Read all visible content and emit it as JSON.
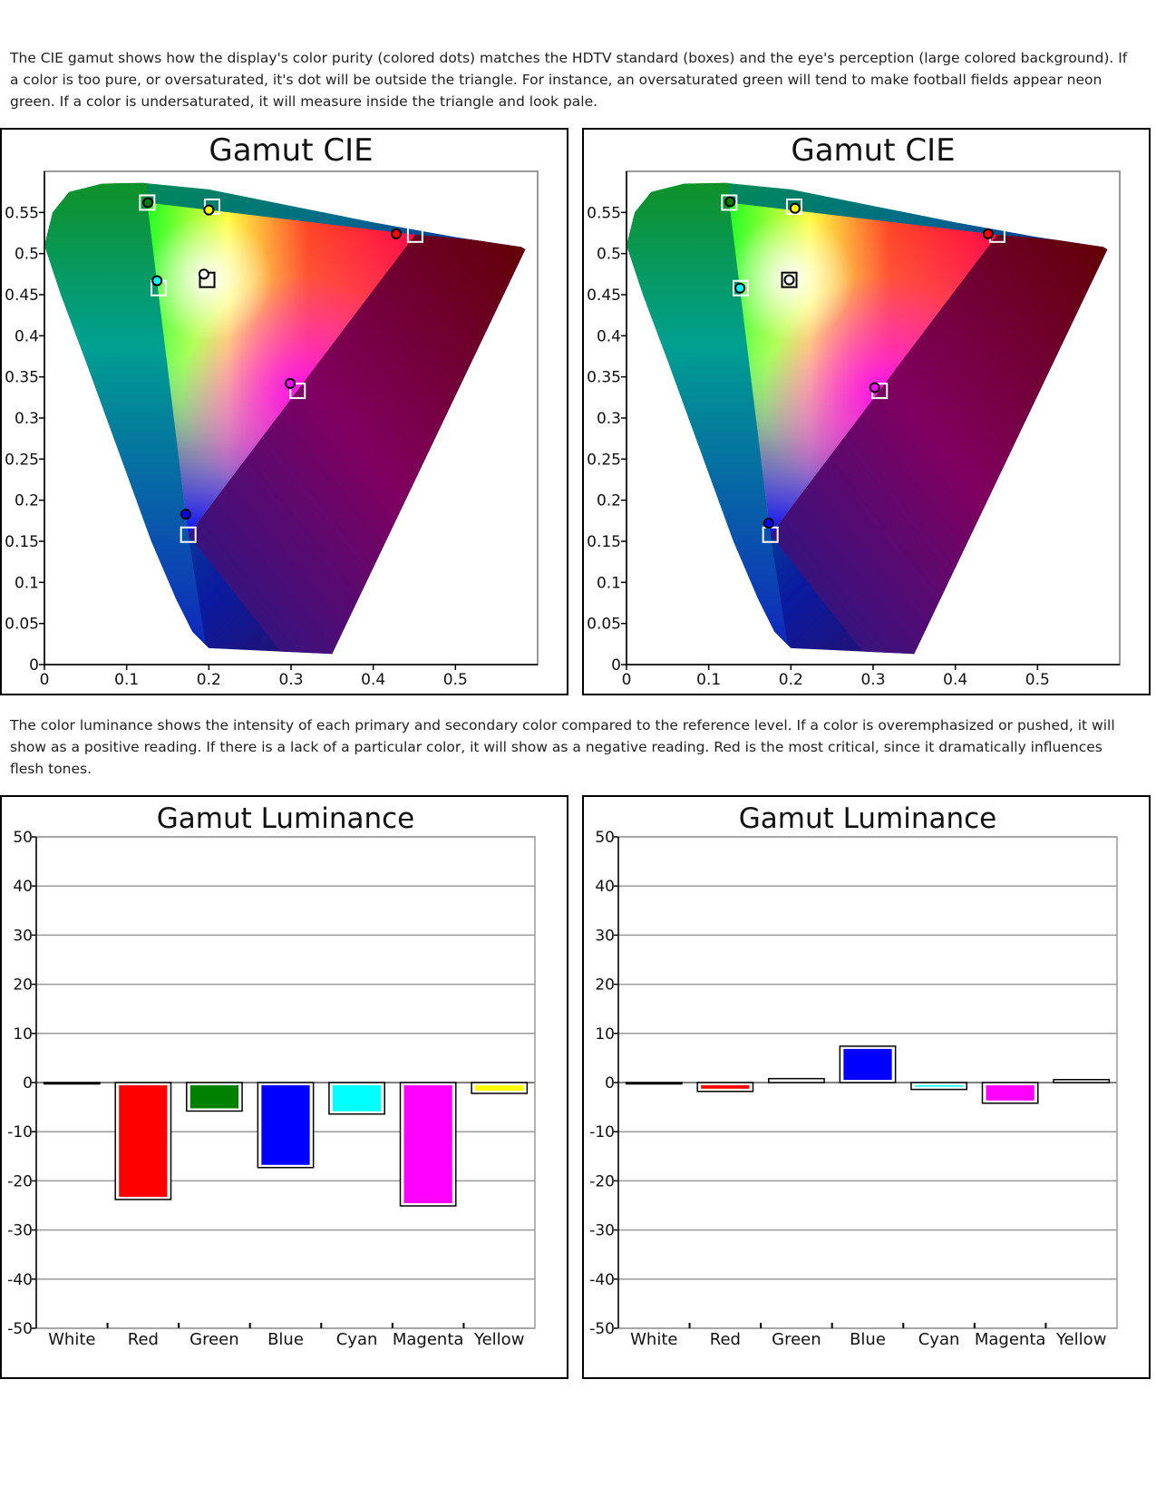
{
  "intro_text": "The CIE gamut shows how the display's color purity (colored dots) matches the HDTV standard (boxes) and the eye's perception (large colored background).  If a color is too pure, or oversaturated, it's dot will be outside the triangle.  For instance, an oversaturated green will tend to make football fields appear neon green.   If a color is undersaturated, it will measure inside the triangle and look pale.",
  "luminance_text": "The color luminance shows the intensity of each primary and secondary color compared to the reference level.  If a color is overemphasized or pushed, it will show as a positive reading.  If there is a lack of a particular color, it will show as a negative reading.  Red is the most critical, since it dramatically influences flesh tones.",
  "colors": {
    "White": "#ffffff",
    "Red": "#ff0000",
    "Green": "#008000",
    "Blue": "#0000ff",
    "Cyan": "#00ffff",
    "Magenta": "#ff00ff",
    "Yellow": "#ffff00"
  },
  "chart_data": [
    {
      "id": "cie-left",
      "type": "scatter",
      "title": "Gamut CIE",
      "xlim": [
        0,
        0.6
      ],
      "ylim": [
        0,
        0.6
      ],
      "x_ticks": [
        0,
        0.1,
        0.2,
        0.3,
        0.4,
        0.5
      ],
      "x_tick_labels": [
        "0",
        "0.1",
        "0.2",
        "0.3",
        "0.4",
        "0.5"
      ],
      "y_ticks": [
        0,
        0.05,
        0.1,
        0.15,
        0.2,
        0.25,
        0.3,
        0.35,
        0.4,
        0.45,
        0.5,
        0.55
      ],
      "y_tick_labels": [
        "0",
        "0.05",
        "0.1",
        "0.15",
        "0.2",
        "0.25",
        "0.3",
        "0.35",
        "0.4",
        "0.45",
        "0.5",
        "0.55"
      ],
      "reference_boxes": [
        {
          "name": "Red",
          "x": 0.451,
          "y": 0.523
        },
        {
          "name": "Green",
          "x": 0.125,
          "y": 0.562
        },
        {
          "name": "Blue",
          "x": 0.175,
          "y": 0.158
        },
        {
          "name": "White",
          "x": 0.198,
          "y": 0.468
        },
        {
          "name": "Cyan",
          "x": 0.139,
          "y": 0.458
        },
        {
          "name": "Magenta",
          "x": 0.308,
          "y": 0.333
        },
        {
          "name": "Yellow",
          "x": 0.204,
          "y": 0.557
        }
      ],
      "measured_points": [
        {
          "name": "Red",
          "x": 0.428,
          "y": 0.524
        },
        {
          "name": "Green",
          "x": 0.126,
          "y": 0.562
        },
        {
          "name": "Blue",
          "x": 0.172,
          "y": 0.183
        },
        {
          "name": "White",
          "x": 0.194,
          "y": 0.475
        },
        {
          "name": "Cyan",
          "x": 0.137,
          "y": 0.467
        },
        {
          "name": "Magenta",
          "x": 0.299,
          "y": 0.342
        },
        {
          "name": "Yellow",
          "x": 0.2,
          "y": 0.553
        }
      ]
    },
    {
      "id": "cie-right",
      "type": "scatter",
      "title": "Gamut CIE",
      "xlim": [
        0,
        0.6
      ],
      "ylim": [
        0,
        0.6
      ],
      "x_ticks": [
        0,
        0.1,
        0.2,
        0.3,
        0.4,
        0.5
      ],
      "x_tick_labels": [
        "0",
        "0.1",
        "0.2",
        "0.3",
        "0.4",
        "0.5"
      ],
      "y_ticks": [
        0,
        0.05,
        0.1,
        0.15,
        0.2,
        0.25,
        0.3,
        0.35,
        0.4,
        0.45,
        0.5,
        0.55
      ],
      "y_tick_labels": [
        "0",
        "0.05",
        "0.1",
        "0.15",
        "0.2",
        "0.25",
        "0.3",
        "0.35",
        "0.4",
        "0.45",
        "0.5",
        "0.55"
      ],
      "reference_boxes": [
        {
          "name": "Red",
          "x": 0.451,
          "y": 0.523
        },
        {
          "name": "Green",
          "x": 0.125,
          "y": 0.562
        },
        {
          "name": "Blue",
          "x": 0.175,
          "y": 0.158
        },
        {
          "name": "White",
          "x": 0.198,
          "y": 0.468
        },
        {
          "name": "Cyan",
          "x": 0.139,
          "y": 0.458
        },
        {
          "name": "Magenta",
          "x": 0.308,
          "y": 0.333
        },
        {
          "name": "Yellow",
          "x": 0.204,
          "y": 0.557
        }
      ],
      "measured_points": [
        {
          "name": "Red",
          "x": 0.44,
          "y": 0.524
        },
        {
          "name": "Green",
          "x": 0.126,
          "y": 0.563
        },
        {
          "name": "Blue",
          "x": 0.173,
          "y": 0.172
        },
        {
          "name": "White",
          "x": 0.198,
          "y": 0.468
        },
        {
          "name": "Cyan",
          "x": 0.138,
          "y": 0.458
        },
        {
          "name": "Magenta",
          "x": 0.302,
          "y": 0.337
        },
        {
          "name": "Yellow",
          "x": 0.205,
          "y": 0.555
        }
      ]
    },
    {
      "id": "lum-left",
      "type": "bar",
      "title": "Gamut Luminance",
      "categories": [
        "White",
        "Red",
        "Green",
        "Blue",
        "Cyan",
        "Magenta",
        "Yellow"
      ],
      "values": [
        0,
        -23.8,
        -5.8,
        -17.3,
        -6.4,
        -25.1,
        -2.2
      ],
      "ylim": [
        -50,
        50
      ],
      "y_ticks": [
        50,
        40,
        30,
        20,
        10,
        0,
        -10,
        -20,
        -30,
        -40,
        -50
      ],
      "y_tick_labels": [
        "50",
        "40",
        "30",
        "20",
        "10",
        "0",
        "-10",
        "-20",
        "-30",
        "-40",
        "-50"
      ]
    },
    {
      "id": "lum-right",
      "type": "bar",
      "title": "Gamut Luminance",
      "categories": [
        "White",
        "Red",
        "Green",
        "Blue",
        "Cyan",
        "Magenta",
        "Yellow"
      ],
      "values": [
        0,
        -1.8,
        0.8,
        7.4,
        -1.4,
        -4.2,
        0.6
      ],
      "ylim": [
        -50,
        50
      ],
      "y_ticks": [
        50,
        40,
        30,
        20,
        10,
        0,
        -10,
        -20,
        -30,
        -40,
        -50
      ],
      "y_tick_labels": [
        "50",
        "40",
        "30",
        "20",
        "10",
        "0",
        "-10",
        "-20",
        "-30",
        "-40",
        "-50"
      ]
    }
  ]
}
